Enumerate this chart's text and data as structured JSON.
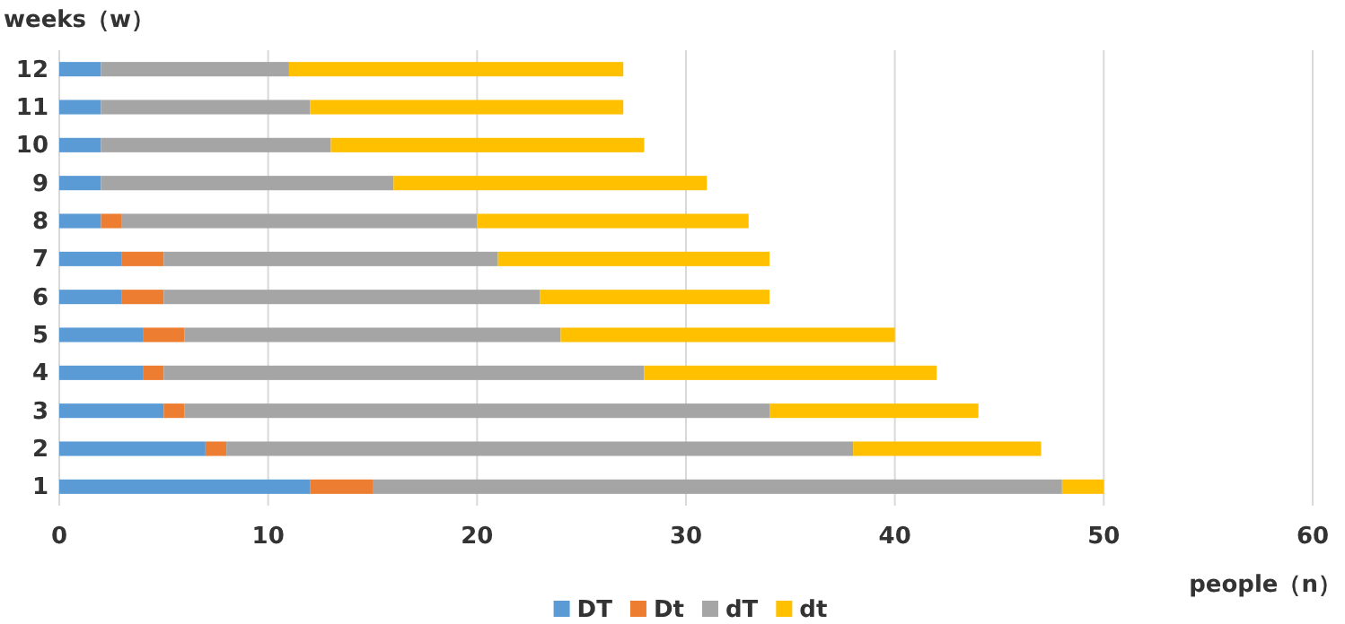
{
  "chart_data": {
    "type": "bar",
    "orientation": "horizontal",
    "stacked": true,
    "ylabel": "weeks（w）",
    "xlabel": "people（n）",
    "categories": [
      "12",
      "11",
      "10",
      "9",
      "8",
      "7",
      "6",
      "5",
      "4",
      "3",
      "2",
      "1"
    ],
    "series": [
      {
        "name": "DT",
        "color": "#5b9bd5",
        "values": [
          2,
          2,
          2,
          2,
          2,
          3,
          3,
          4,
          4,
          5,
          7,
          12
        ]
      },
      {
        "name": "Dt",
        "color": "#ed7d31",
        "values": [
          0,
          0,
          0,
          0,
          1,
          2,
          2,
          2,
          1,
          1,
          1,
          3
        ]
      },
      {
        "name": "dT",
        "color": "#a5a5a5",
        "values": [
          9,
          10,
          11,
          14,
          17,
          16,
          18,
          18,
          23,
          28,
          30,
          33
        ]
      },
      {
        "name": "dt",
        "color": "#ffc000",
        "values": [
          16,
          15,
          15,
          15,
          13,
          13,
          11,
          16,
          14,
          10,
          9,
          2
        ]
      }
    ],
    "xlim": [
      0,
      60
    ],
    "xticks": [
      0,
      10,
      20,
      30,
      40,
      50,
      60
    ],
    "grid": "x",
    "legend": "bottom"
  }
}
